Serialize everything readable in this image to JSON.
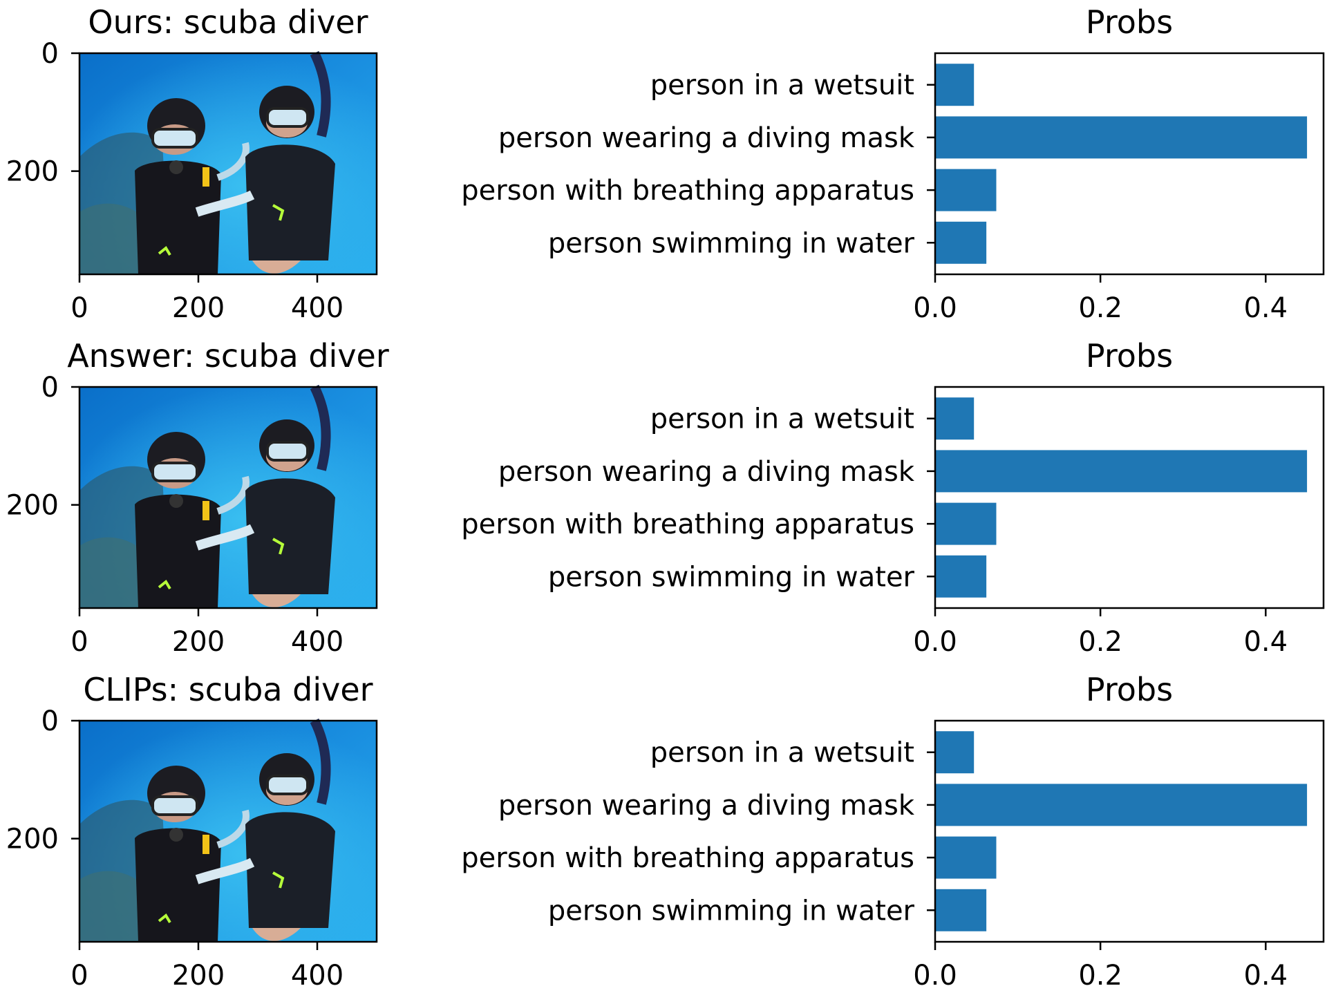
{
  "image_panels": [
    {
      "title": "Ours: scuba diver",
      "image": {
        "width": 500,
        "height": 375,
        "depicts": "two scuba divers underwater"
      },
      "x_ticks": [
        0,
        200,
        400
      ],
      "y_ticks": [
        0,
        200
      ]
    },
    {
      "title": "Answer: scuba diver",
      "image": {
        "width": 500,
        "height": 375,
        "depicts": "two scuba divers underwater"
      },
      "x_ticks": [
        0,
        200,
        400
      ],
      "y_ticks": [
        0,
        200
      ]
    },
    {
      "title": "CLIPs: scuba diver",
      "image": {
        "width": 500,
        "height": 375,
        "depicts": "two scuba divers underwater"
      },
      "x_ticks": [
        0,
        200,
        400
      ],
      "y_ticks": [
        0,
        200
      ]
    }
  ],
  "chart_data": [
    {
      "type": "bar",
      "orientation": "horizontal",
      "title": "Probs",
      "categories": [
        "person in a wetsuit",
        "person wearing a diving mask",
        "person with breathing apparatus",
        "person swimming in water"
      ],
      "values": [
        0.047,
        0.45,
        0.074,
        0.062
      ],
      "xlim": [
        0,
        0.47
      ],
      "x_ticks": [
        "0.0",
        "0.2",
        "0.4"
      ],
      "bar_color": "#1f77b4",
      "grid": false
    },
    {
      "type": "bar",
      "orientation": "horizontal",
      "title": "Probs",
      "categories": [
        "person in a wetsuit",
        "person wearing a diving mask",
        "person with breathing apparatus",
        "person swimming in water"
      ],
      "values": [
        0.047,
        0.45,
        0.074,
        0.062
      ],
      "xlim": [
        0,
        0.47
      ],
      "x_ticks": [
        "0.0",
        "0.2",
        "0.4"
      ],
      "bar_color": "#1f77b4",
      "grid": false
    },
    {
      "type": "bar",
      "orientation": "horizontal",
      "title": "Probs",
      "categories": [
        "person in a wetsuit",
        "person wearing a diving mask",
        "person with breathing apparatus",
        "person swimming in water"
      ],
      "values": [
        0.047,
        0.45,
        0.074,
        0.062
      ],
      "xlim": [
        0,
        0.47
      ],
      "x_ticks": [
        "0.0",
        "0.2",
        "0.4"
      ],
      "bar_color": "#1f77b4",
      "grid": false
    }
  ]
}
